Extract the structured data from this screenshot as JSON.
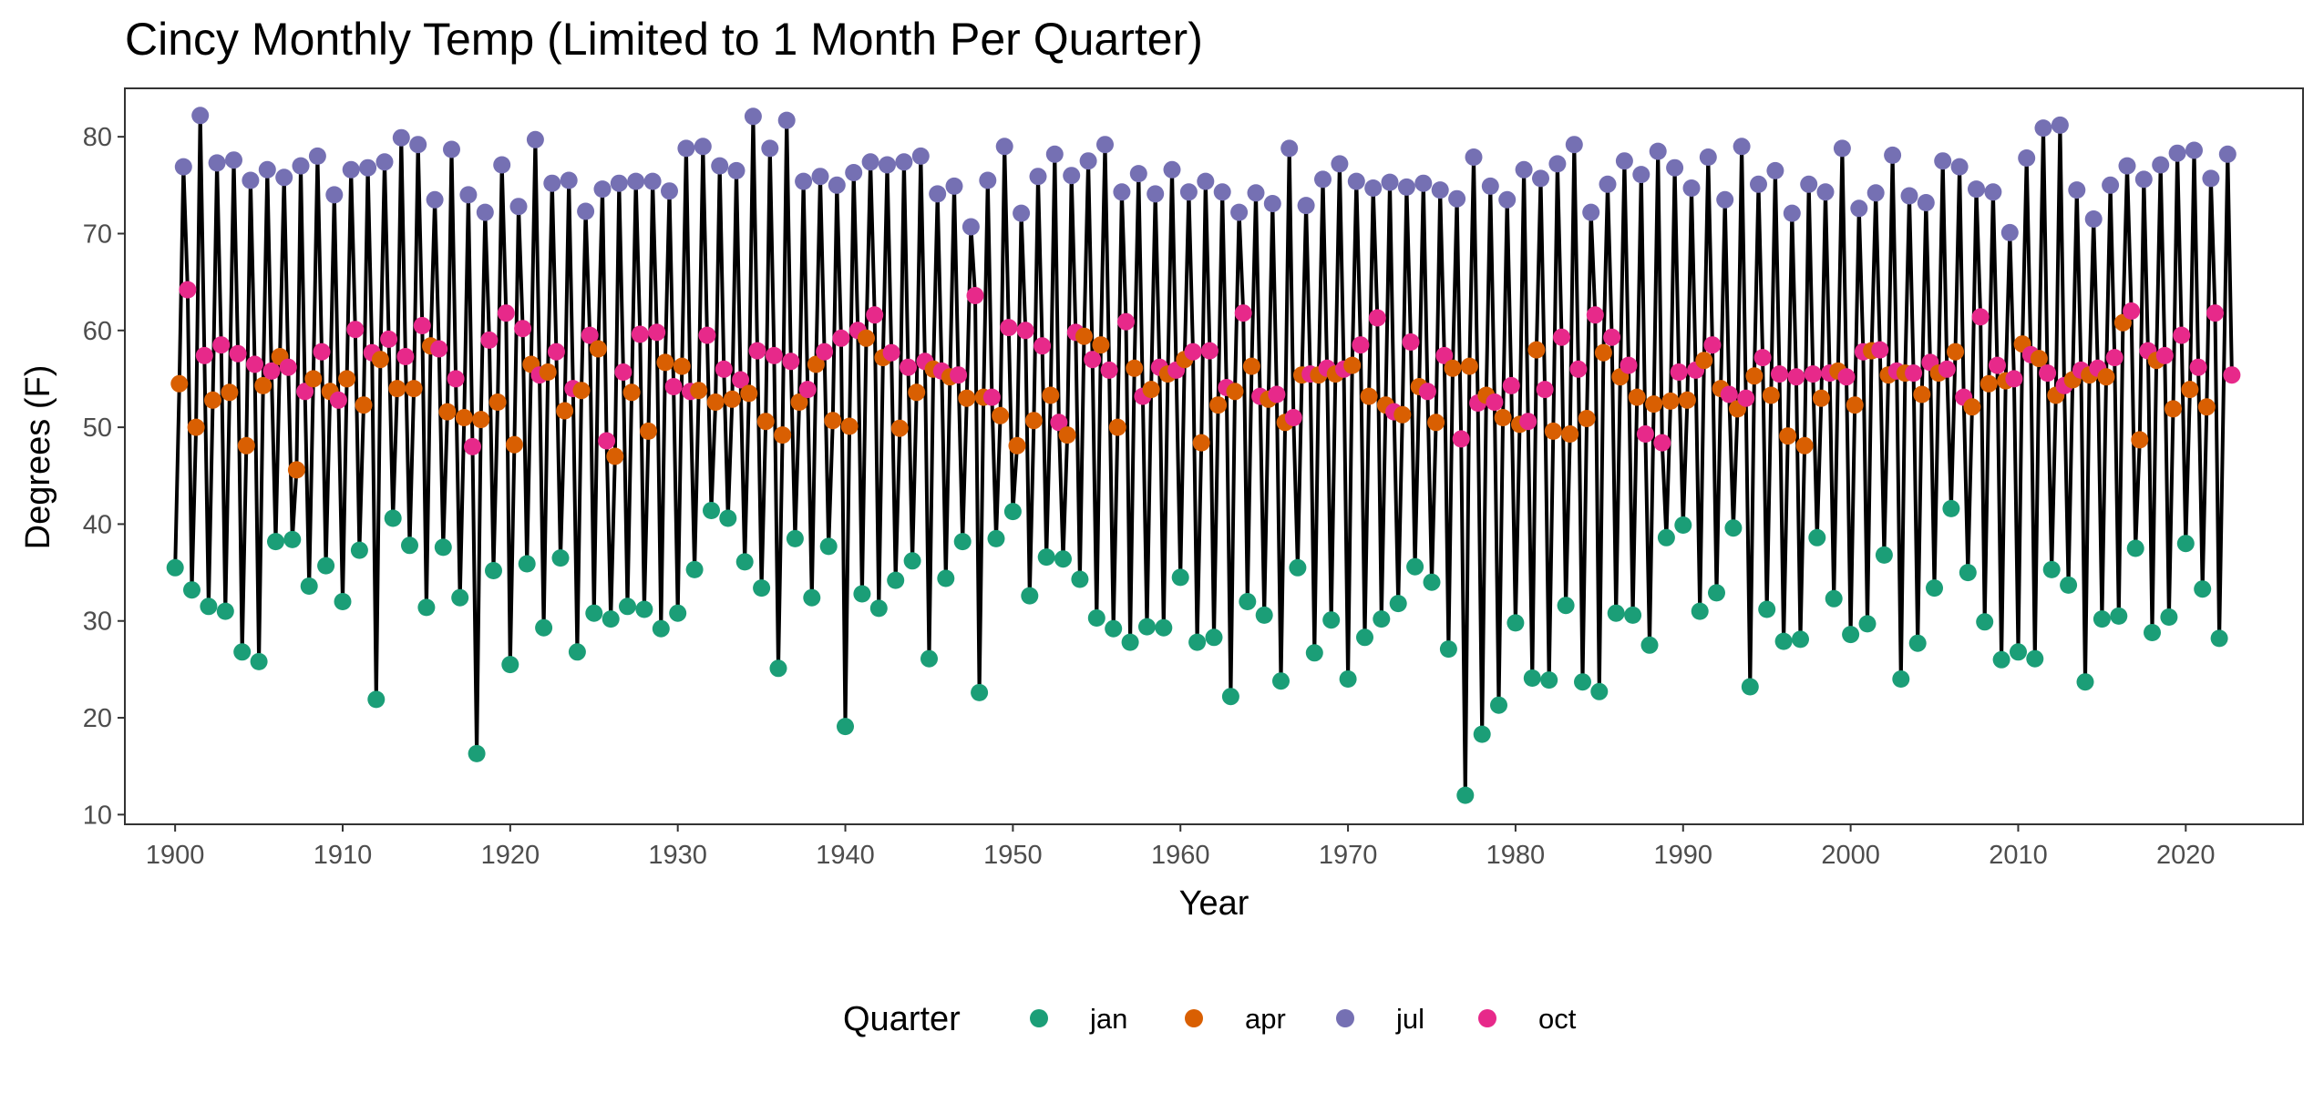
{
  "chart_data": {
    "type": "line",
    "title": "Cincy Monthly Temp (Limited to 1 Month Per Quarter)",
    "xlabel": "Year",
    "ylabel": "Degrees (F)",
    "xlim": [
      1897,
      2027
    ],
    "ylim": [
      9,
      85
    ],
    "x_ticks": [
      1900,
      1910,
      1920,
      1930,
      1940,
      1950,
      1960,
      1970,
      1980,
      1990,
      2000,
      2010,
      2020
    ],
    "y_ticks": [
      10,
      20,
      30,
      40,
      50,
      60,
      70,
      80
    ],
    "grid": false,
    "line_color": "#000000",
    "legend": {
      "title": "Quarter",
      "position": "bottom",
      "entries": [
        {
          "label": "jan",
          "color": "#1B9E77"
        },
        {
          "label": "apr",
          "color": "#D95F02"
        },
        {
          "label": "jul",
          "color": "#7570B3"
        },
        {
          "label": "oct",
          "color": "#E7298A"
        }
      ]
    },
    "start_year": 1900,
    "series": [
      {
        "name": "jan",
        "color": "#1B9E77",
        "month_offset": 0,
        "values": [
          35.5,
          33.2,
          31.5,
          31.0,
          26.8,
          25.8,
          38.2,
          38.4,
          33.6,
          35.7,
          32.0,
          37.3,
          21.9,
          40.6,
          37.8,
          31.4,
          37.6,
          32.4,
          16.3,
          35.2,
          25.5,
          35.9,
          29.3,
          36.5,
          26.8,
          30.8,
          30.2,
          31.5,
          31.2,
          29.2,
          30.8,
          35.3,
          41.4,
          40.6,
          36.1,
          33.4,
          25.1,
          38.5,
          32.4,
          37.7,
          19.1,
          32.8,
          31.3,
          34.2,
          36.2,
          26.1,
          34.4,
          38.2,
          22.6,
          38.5,
          41.3,
          32.6,
          36.6,
          36.4,
          34.3,
          30.3,
          29.2,
          27.8,
          29.4,
          29.3,
          34.5,
          27.8,
          28.3,
          22.2,
          32.0,
          30.6,
          23.8,
          35.5,
          26.7,
          30.1,
          24.0,
          28.3,
          30.2,
          31.8,
          35.6,
          34.0,
          27.1,
          12.0,
          18.3,
          21.3,
          29.8,
          24.1,
          23.9,
          31.6,
          23.7,
          22.7,
          30.8,
          30.6,
          27.5,
          38.6,
          39.9,
          31.0,
          32.9,
          39.6,
          23.2,
          31.2,
          27.9,
          28.1,
          38.6,
          32.3,
          28.6,
          29.7,
          36.8,
          24.0,
          27.7,
          33.4,
          41.6,
          35.0,
          29.9,
          26.0,
          26.8,
          26.1,
          35.3,
          33.7,
          23.7,
          30.2,
          30.5,
          37.5,
          28.8,
          30.4,
          38.0,
          33.3,
          28.2
        ]
      },
      {
        "name": "apr",
        "color": "#D95F02",
        "month_offset": 3,
        "values": [
          54.5,
          50.0,
          52.8,
          53.6,
          48.1,
          54.3,
          57.3,
          45.6,
          55.0,
          53.7,
          55.0,
          52.3,
          57.0,
          54.0,
          54.0,
          58.4,
          51.6,
          51.0,
          50.8,
          52.6,
          48.2,
          56.5,
          55.7,
          51.7,
          53.8,
          58.1,
          47.0,
          53.6,
          49.6,
          56.7,
          56.3,
          53.8,
          52.6,
          52.9,
          53.5,
          50.6,
          49.2,
          52.6,
          56.5,
          50.7,
          50.1,
          59.2,
          57.2,
          49.9,
          53.6,
          56.0,
          55.2,
          53.0,
          53.1,
          51.2,
          48.1,
          50.7,
          53.3,
          49.2,
          59.4,
          58.5,
          50.0,
          56.1,
          53.9,
          55.5,
          57.0,
          48.4,
          52.3,
          53.7,
          56.3,
          52.9,
          50.5,
          55.4,
          55.4,
          55.5,
          56.4,
          53.2,
          52.3,
          51.3,
          54.2,
          50.5,
          56.1,
          56.3,
          53.3,
          51.0,
          50.3,
          58.0,
          49.6,
          49.3,
          50.9,
          57.7,
          55.2,
          53.1,
          52.4,
          52.7,
          52.8,
          56.9,
          54.0,
          51.9,
          55.3,
          53.3,
          49.1,
          48.1,
          53.0,
          55.8,
          52.3,
          57.9,
          55.4,
          55.6,
          53.4,
          55.6,
          57.8,
          52.1,
          54.5,
          54.8,
          58.6,
          57.1,
          53.3,
          54.9,
          55.4,
          55.2,
          60.8,
          48.7,
          56.9,
          51.9,
          53.9,
          52.1
        ]
      },
      {
        "name": "jul",
        "color": "#7570B3",
        "month_offset": 6,
        "values": [
          76.9,
          82.2,
          77.3,
          77.6,
          75.5,
          76.6,
          75.8,
          77.0,
          78.0,
          74.0,
          76.6,
          76.8,
          77.4,
          79.9,
          79.2,
          73.5,
          78.7,
          74.0,
          72.2,
          77.1,
          72.8,
          79.7,
          75.2,
          75.5,
          72.3,
          74.6,
          75.2,
          75.4,
          75.4,
          74.4,
          78.8,
          79.0,
          77.0,
          76.5,
          82.1,
          78.8,
          81.7,
          75.4,
          75.9,
          75.0,
          76.3,
          77.4,
          77.1,
          77.4,
          78.0,
          74.1,
          74.9,
          70.7,
          75.5,
          79.0,
          72.1,
          75.9,
          78.2,
          76.0,
          77.5,
          79.2,
          74.3,
          76.2,
          74.1,
          76.6,
          74.3,
          75.4,
          74.3,
          72.2,
          74.2,
          73.1,
          78.8,
          72.9,
          75.6,
          77.2,
          75.4,
          74.7,
          75.3,
          74.8,
          75.2,
          74.5,
          73.6,
          77.9,
          74.9,
          73.5,
          76.6,
          75.7,
          77.2,
          79.2,
          72.2,
          75.1,
          77.5,
          76.1,
          78.5,
          76.8,
          74.7,
          77.9,
          73.5,
          79.0,
          75.1,
          76.5,
          72.1,
          75.1,
          74.3,
          78.8,
          72.6,
          74.2,
          78.1,
          73.9,
          73.2,
          77.5,
          76.9,
          74.6,
          74.3,
          70.1,
          77.8,
          80.9,
          81.2,
          74.5,
          71.5,
          75.0,
          77.0,
          75.6,
          77.1,
          78.3,
          78.6,
          75.7,
          78.2
        ]
      },
      {
        "name": "oct",
        "color": "#E7298A",
        "month_offset": 9,
        "values": [
          64.2,
          57.4,
          58.5,
          57.6,
          56.5,
          55.8,
          56.2,
          53.7,
          57.8,
          52.8,
          60.1,
          57.7,
          59.1,
          57.3,
          60.5,
          58.1,
          55.0,
          48.0,
          59.0,
          61.8,
          60.2,
          55.4,
          57.8,
          54.0,
          59.5,
          48.6,
          55.7,
          59.6,
          59.8,
          54.2,
          53.7,
          59.5,
          56.0,
          54.9,
          57.9,
          57.4,
          56.8,
          53.9,
          57.8,
          59.2,
          60.0,
          61.6,
          57.7,
          56.2,
          56.8,
          55.8,
          55.4,
          63.6,
          53.1,
          60.3,
          60.0,
          58.4,
          50.5,
          59.8,
          57.0,
          55.9,
          60.9,
          53.2,
          56.2,
          55.9,
          57.8,
          57.9,
          54.1,
          61.8,
          53.2,
          53.4,
          51.0,
          55.5,
          56.1,
          56.0,
          58.5,
          61.3,
          51.6,
          58.8,
          53.7,
          57.4,
          48.8,
          52.5,
          52.6,
          54.3,
          50.6,
          53.9,
          59.3,
          56.0,
          61.6,
          59.3,
          56.4,
          49.3,
          48.4,
          55.7,
          55.9,
          58.5,
          53.4,
          53.0,
          57.2,
          55.5,
          55.2,
          55.5,
          55.6,
          55.2,
          57.8,
          58.0,
          55.8,
          55.6,
          56.7,
          56.0,
          53.1,
          61.4,
          56.4,
          55.0,
          57.5,
          55.6,
          54.3,
          55.9,
          56.1,
          57.2,
          62.0,
          57.9,
          57.4,
          59.5,
          56.2,
          61.8,
          55.4
        ]
      }
    ]
  }
}
